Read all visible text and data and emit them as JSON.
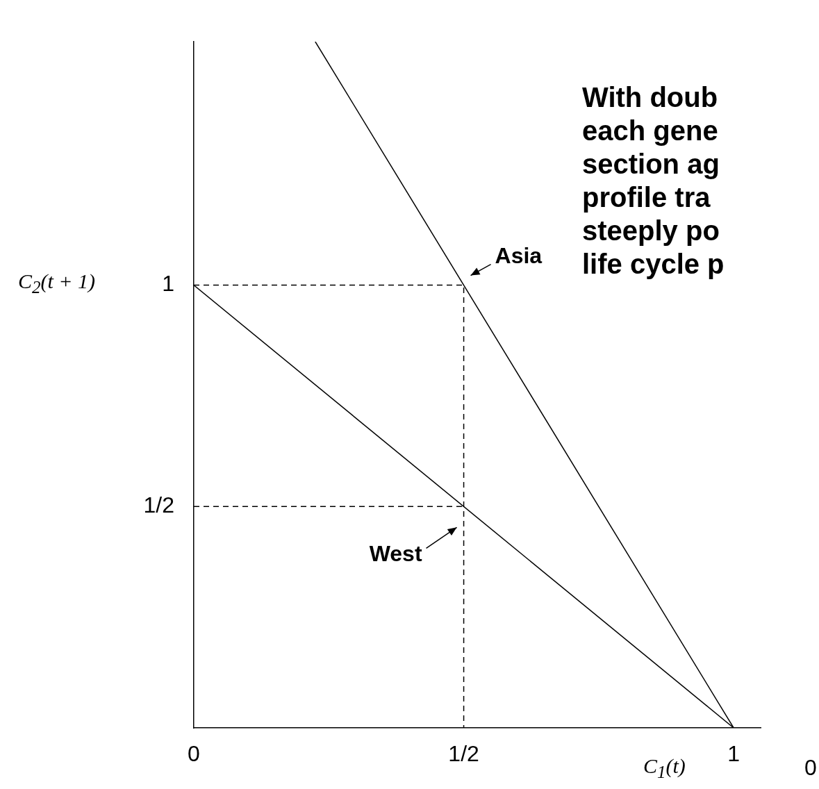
{
  "chart_data": {
    "type": "line",
    "xlabel": "C$_{1}$(t)",
    "ylabel": "C$_{2}$(t + 1)",
    "xlim": [
      0,
      1.05
    ],
    "ylim": [
      0,
      1.55
    ],
    "xticks": [
      0,
      {
        "value": 0.5,
        "label": "1/2"
      },
      1
    ],
    "yticks": [
      {
        "value": 0.5,
        "label": "1/2"
      },
      1
    ],
    "grid": false,
    "legend": false,
    "marker": "none",
    "line_style": "solid",
    "series": [
      {
        "color": "#000000",
        "x": [
          0.225,
          1
        ],
        "values": [
          1.55,
          0
        ]
      },
      {
        "color": "#000000",
        "x": [
          0,
          1
        ],
        "values": [
          1,
          0
        ]
      },
      {
        "color": "#000000",
        "x": [
          0,
          0.5,
          0.5
        ],
        "values": [
          1,
          1,
          0
        ],
        "line_style": "dashed"
      },
      {
        "color": "#000000",
        "x": [
          0,
          0.5
        ],
        "values": [
          0.5,
          0.5
        ],
        "line_style": "dashed"
      }
    ],
    "annotations": [
      "With doub\neach gene\nsection ag\nprofile tra\nsteeply po\nlife cycle p",
      "0",
      {
        "text": "Asia",
        "x": 0.5,
        "y": 1
      },
      {
        "text": "West",
        "x": 0.5,
        "y": 0.5
      }
    ]
  }
}
